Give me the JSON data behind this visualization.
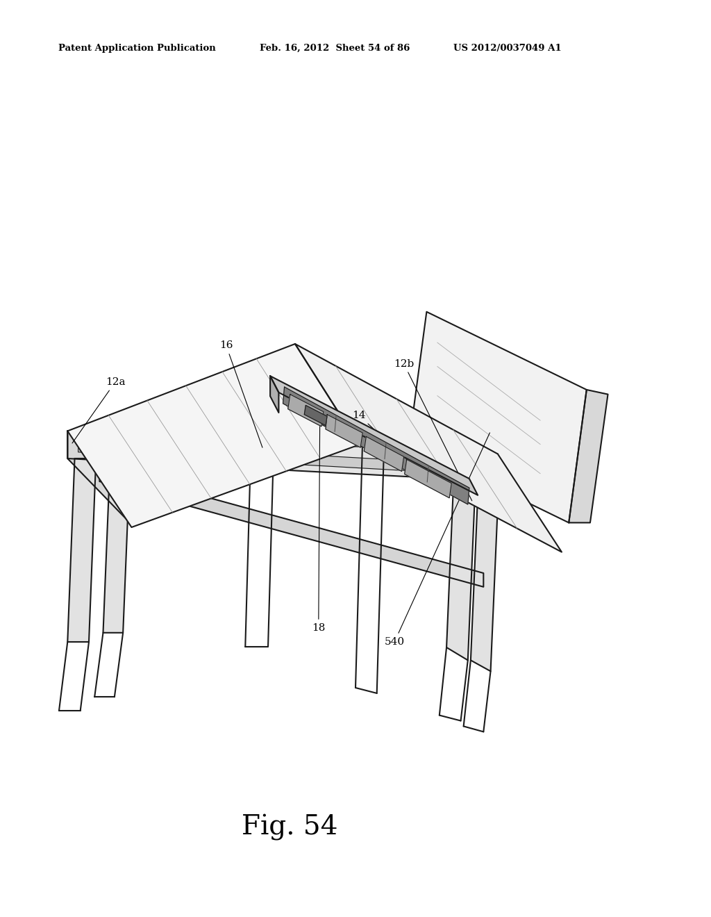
{
  "bg_color": "#ffffff",
  "line_color": "#1a1a1a",
  "header_left": "Patent Application Publication",
  "header_mid": "Feb. 16, 2012  Sheet 54 of 86",
  "header_right": "US 2012/0037049 A1",
  "fig_label": "Fig. 54",
  "lw_main": 1.5,
  "lw_thin": 0.8,
  "lw_texture": 0.6
}
